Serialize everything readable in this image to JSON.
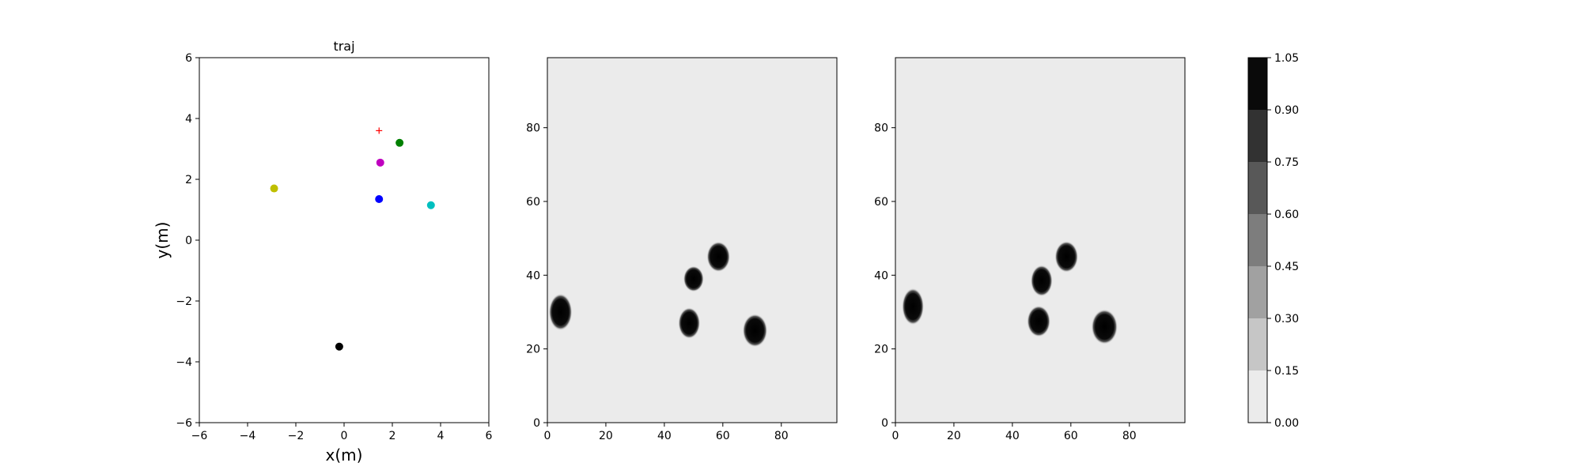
{
  "chart_data": [
    {
      "type": "scatter",
      "title": "traj",
      "xlabel": "x(m)",
      "ylabel": "y(m)",
      "xlim": [
        -6,
        6
      ],
      "ylim": [
        -6,
        6
      ],
      "xticks": [
        -6,
        -4,
        -2,
        0,
        2,
        4,
        6
      ],
      "yticks": [
        -6,
        -4,
        -2,
        0,
        2,
        4,
        6
      ],
      "grid": false,
      "series": [
        {
          "marker": "plus",
          "color": "#ff0000",
          "points": [
            [
              1.45,
              3.6
            ]
          ]
        },
        {
          "marker": "circle",
          "color": "#008000",
          "points": [
            [
              2.3,
              3.2
            ]
          ]
        },
        {
          "marker": "circle",
          "color": "#bf00bf",
          "points": [
            [
              1.5,
              2.55
            ]
          ]
        },
        {
          "marker": "circle",
          "color": "#bfbf00",
          "points": [
            [
              -2.9,
              1.7
            ]
          ]
        },
        {
          "marker": "circle",
          "color": "#0000ff",
          "points": [
            [
              1.45,
              1.35
            ]
          ]
        },
        {
          "marker": "circle",
          "color": "#00bfbf",
          "points": [
            [
              3.6,
              1.15
            ]
          ]
        },
        {
          "marker": "circle",
          "color": "#000000",
          "points": [
            [
              -0.2,
              -3.5
            ]
          ]
        }
      ]
    },
    {
      "type": "heatmap",
      "title": "",
      "xlabel": "",
      "ylabel": "",
      "xlim": [
        0,
        99
      ],
      "ylim": [
        0,
        99
      ],
      "xticks": [
        0,
        20,
        40,
        60,
        80
      ],
      "yticks": [
        0,
        20,
        40,
        60,
        80
      ],
      "background_value": 0.05,
      "blobs": [
        {
          "x": 4.5,
          "y": 30,
          "rx": 3.2,
          "ry": 4.0,
          "value": 1.0
        },
        {
          "x": 48.5,
          "y": 27,
          "rx": 3.0,
          "ry": 3.4,
          "value": 1.0
        },
        {
          "x": 50,
          "y": 39,
          "rx": 2.8,
          "ry": 2.8,
          "value": 1.0
        },
        {
          "x": 58.5,
          "y": 45,
          "rx": 3.2,
          "ry": 3.3,
          "value": 1.0
        },
        {
          "x": 71,
          "y": 25,
          "rx": 3.4,
          "ry": 3.6,
          "value": 1.0
        }
      ]
    },
    {
      "type": "heatmap",
      "title": "",
      "xlabel": "",
      "ylabel": "",
      "xlim": [
        0,
        99
      ],
      "ylim": [
        0,
        99
      ],
      "xticks": [
        0,
        20,
        40,
        60,
        80
      ],
      "yticks": [
        0,
        20,
        40,
        60,
        80
      ],
      "background_value": 0.05,
      "blobs": [
        {
          "x": 6,
          "y": 31.5,
          "rx": 3.0,
          "ry": 4.0,
          "value": 1.0
        },
        {
          "x": 49,
          "y": 27.5,
          "rx": 3.2,
          "ry": 3.4,
          "value": 1.0
        },
        {
          "x": 50,
          "y": 38.5,
          "rx": 3.0,
          "ry": 3.4,
          "value": 1.0
        },
        {
          "x": 58.5,
          "y": 45,
          "rx": 3.2,
          "ry": 3.4,
          "value": 1.0
        },
        {
          "x": 71.5,
          "y": 26,
          "rx": 3.6,
          "ry": 3.8,
          "value": 1.0
        }
      ]
    }
  ],
  "colorbar": {
    "boundaries": [
      0.0,
      0.15,
      0.3,
      0.45,
      0.6,
      0.75,
      0.9,
      1.05
    ],
    "tick_labels": [
      "0.00",
      "0.15",
      "0.30",
      "0.45",
      "0.60",
      "0.75",
      "0.90",
      "1.05"
    ],
    "colors": [
      "#ebebeb",
      "#c6c6c6",
      "#a1a1a1",
      "#7d7d7d",
      "#585858",
      "#323232",
      "#0a0a0a"
    ]
  }
}
